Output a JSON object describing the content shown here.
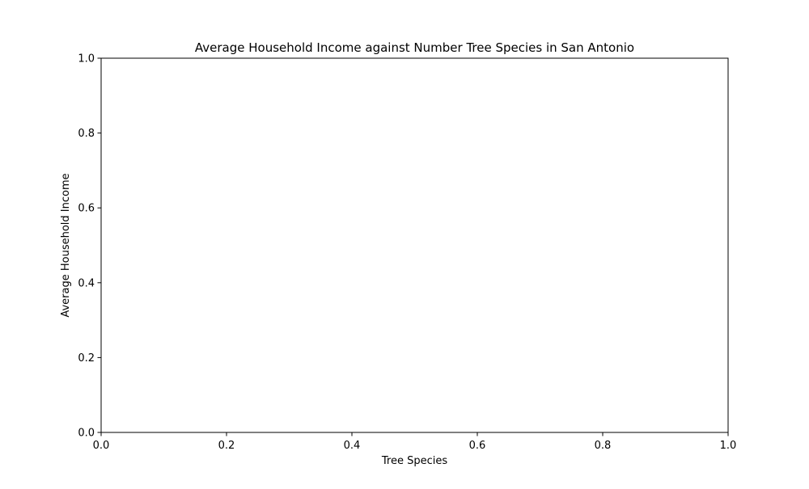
{
  "chart_data": {
    "type": "scatter",
    "title": "Average Household Income against Number Tree Species in San Antonio",
    "xlabel": "Tree Species",
    "ylabel": "Average Household Income",
    "xlim": [
      0.0,
      1.0
    ],
    "ylim": [
      0.0,
      1.0
    ],
    "xticks": [
      "0.0",
      "0.2",
      "0.4",
      "0.6",
      "0.8",
      "1.0"
    ],
    "yticks": [
      "0.0",
      "0.2",
      "0.4",
      "0.6",
      "0.8",
      "1.0"
    ],
    "series": [],
    "grid": false,
    "legend": "none"
  }
}
